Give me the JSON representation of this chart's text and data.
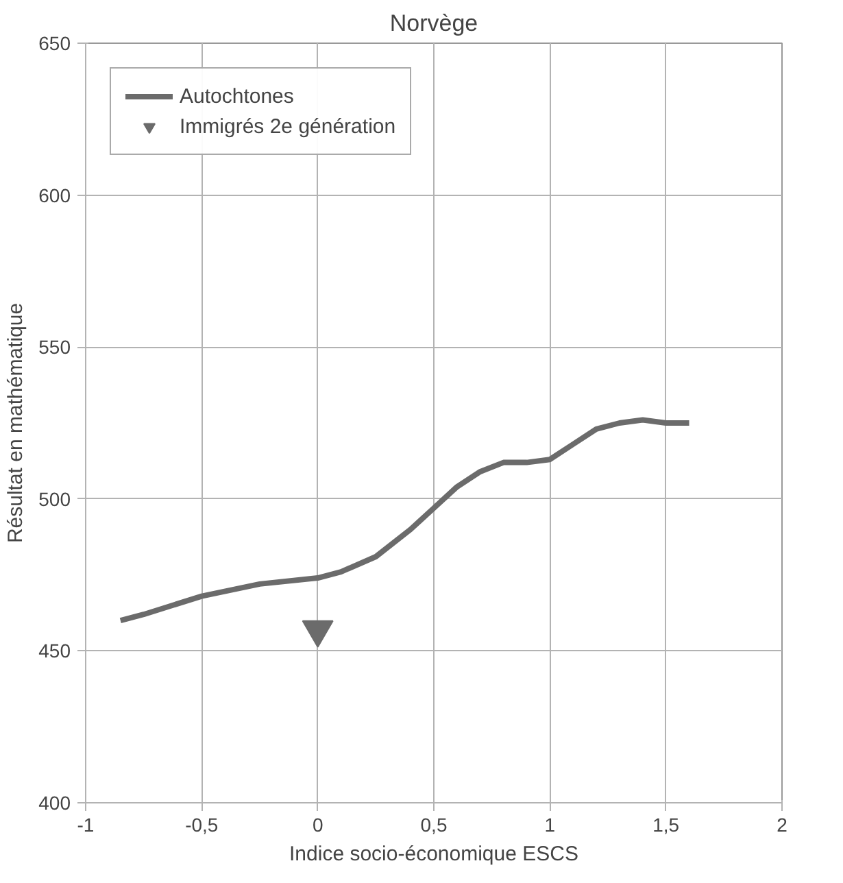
{
  "chart_data": {
    "type": "line",
    "title": "Norvège",
    "xlabel": "Indice socio-économique ESCS",
    "ylabel": "Résultat en mathématique",
    "xlim": [
      -1,
      2
    ],
    "xticks": [
      -1,
      {
        "value": -0.5,
        "label": "-0,5"
      },
      0,
      {
        "value": 0.5,
        "label": "0,5"
      },
      1,
      {
        "value": 1.5,
        "label": "1,5"
      },
      2
    ],
    "ylim": [
      400,
      650
    ],
    "yticks": [
      400,
      450,
      500,
      550,
      600,
      650
    ],
    "grid": true,
    "legend": "top left",
    "series": [
      {
        "name": "Autochtones",
        "color": "#6b6b6b",
        "x": [
          -0.85,
          -0.75,
          -0.5,
          -0.25,
          0,
          0.1,
          0.25,
          0.4,
          0.5,
          0.6,
          0.7,
          0.8,
          0.9,
          1.0,
          1.1,
          1.2,
          1.3,
          1.4,
          1.5,
          1.6
        ],
        "values": [
          460,
          462,
          468,
          472,
          474,
          476,
          481,
          490,
          497,
          504,
          509,
          512,
          512,
          513,
          518,
          523,
          525,
          526,
          525,
          525
        ]
      },
      {
        "name": "Immigrés 2e génération",
        "type": "scatter",
        "marker": "triangle",
        "color": "#6b6b6b",
        "x": [
          0
        ],
        "values": [
          457
        ]
      }
    ]
  }
}
